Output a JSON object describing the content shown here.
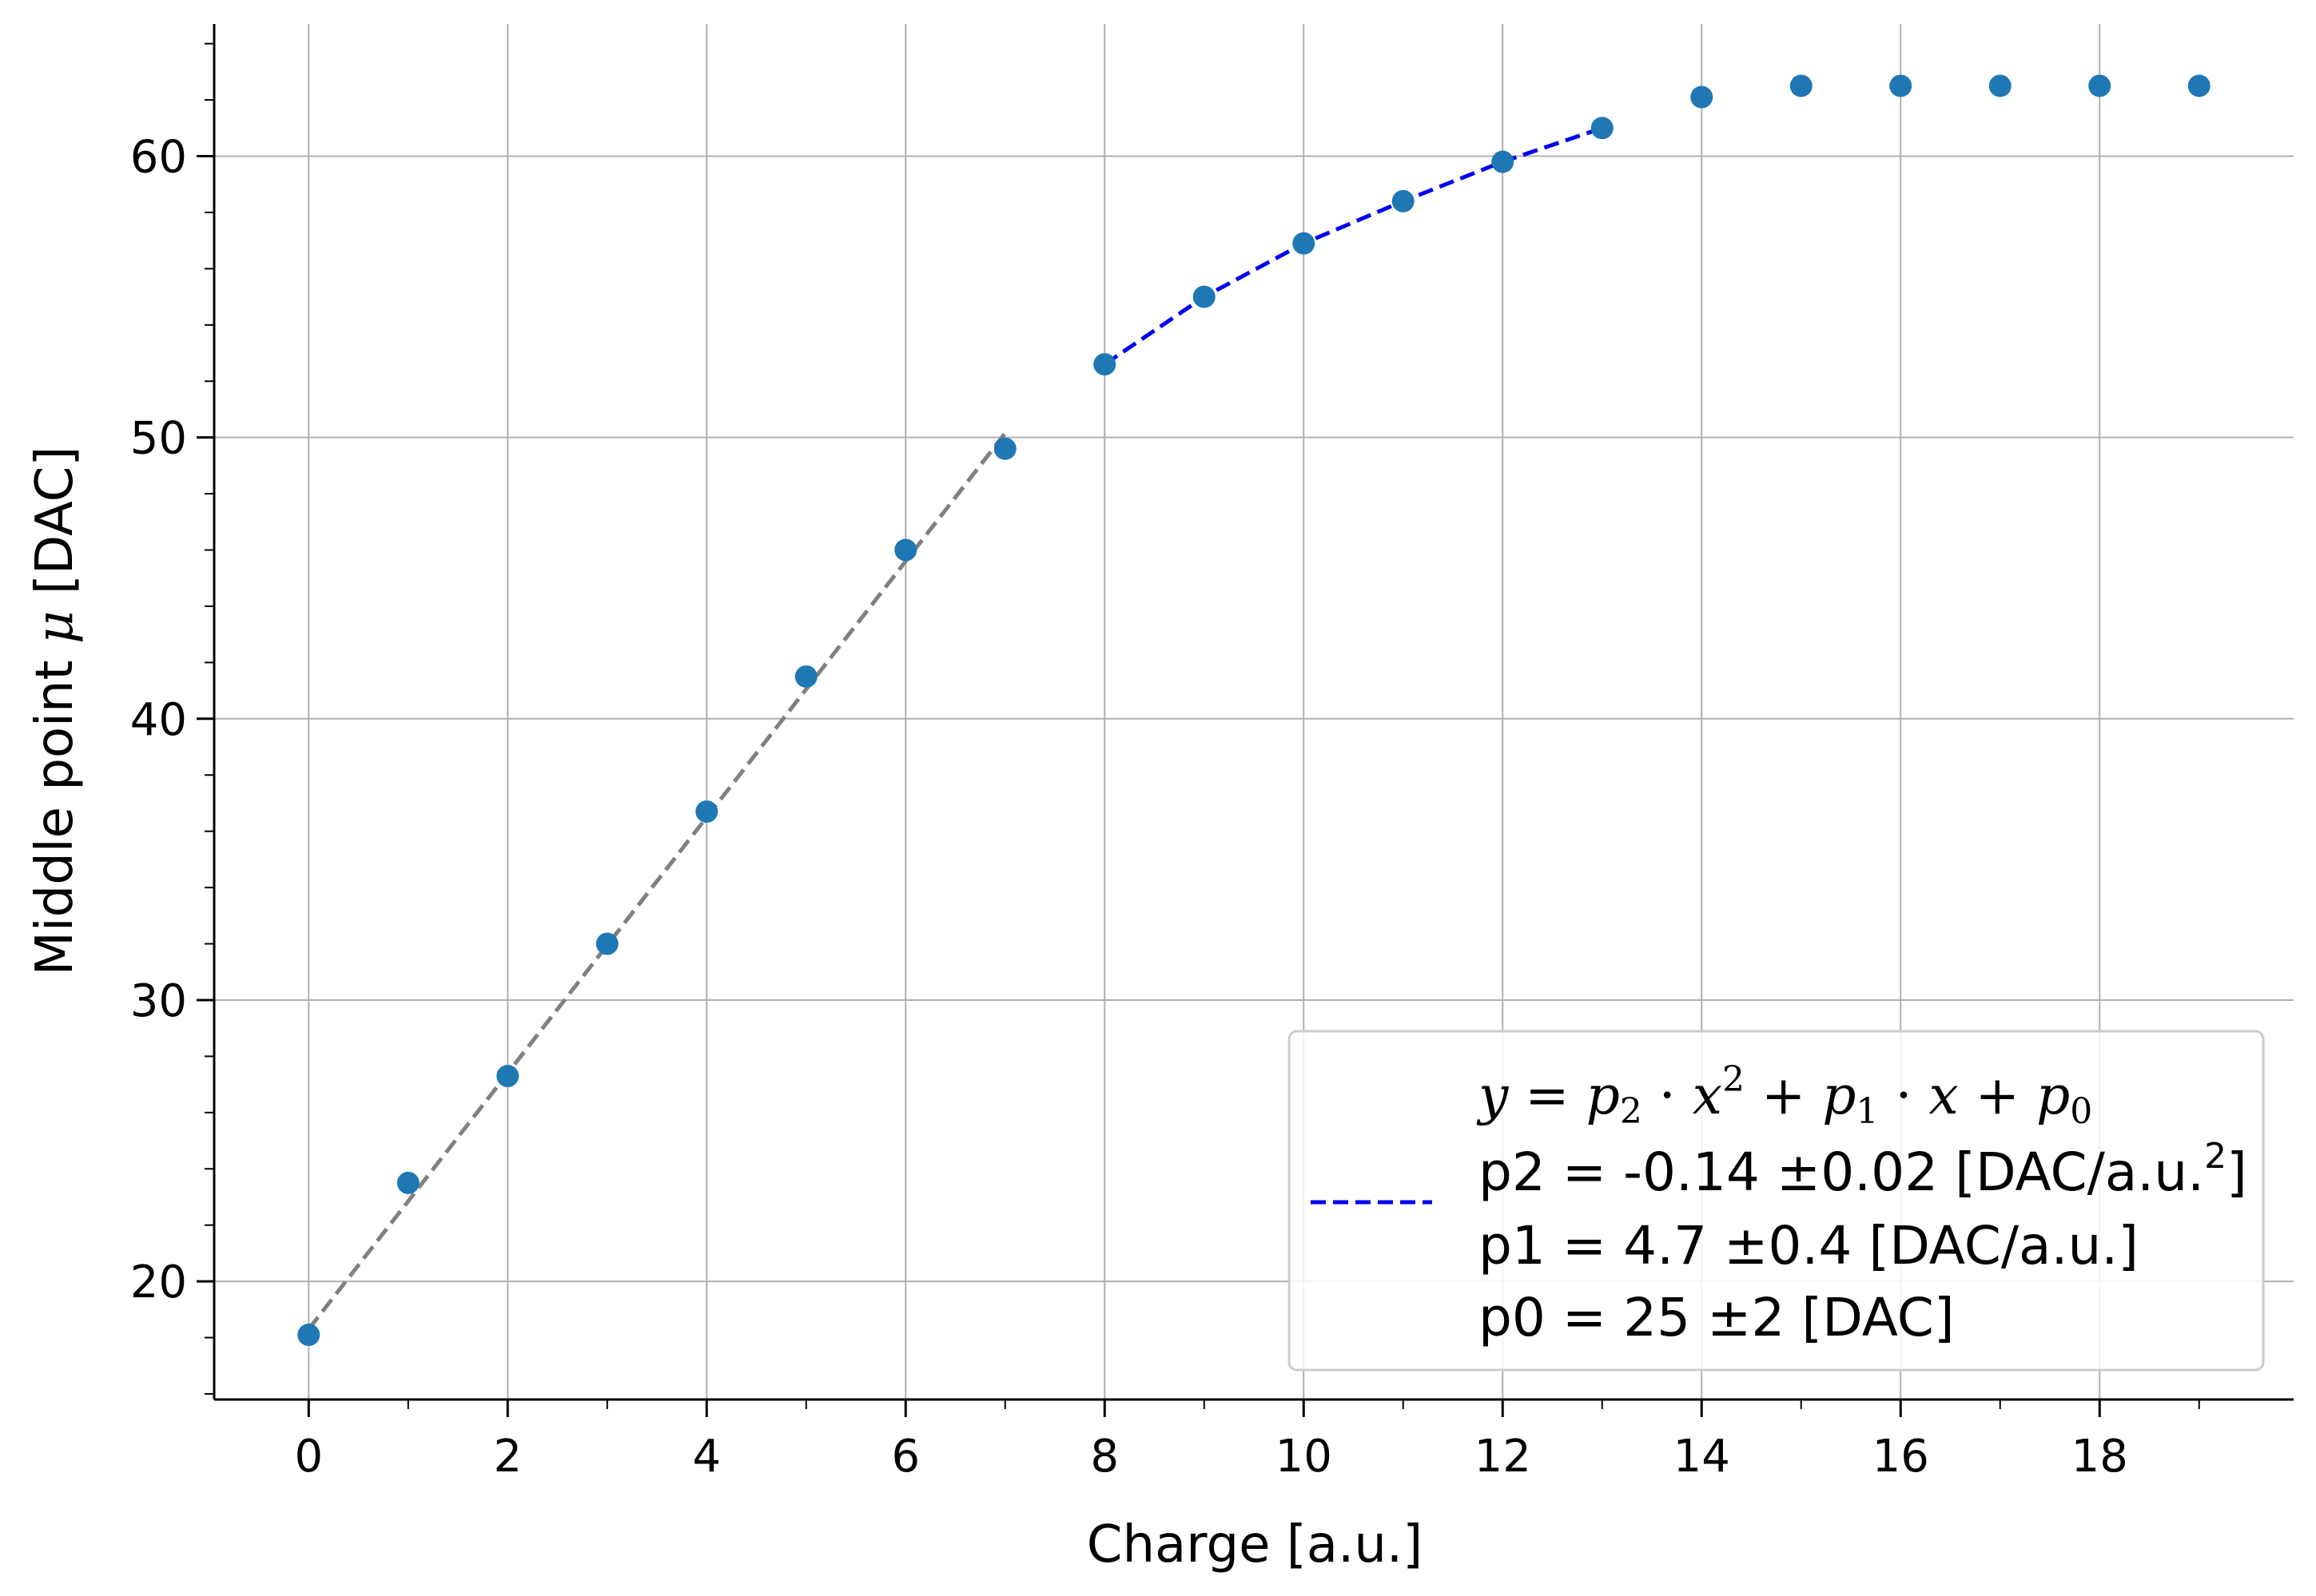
{
  "chart_data": {
    "type": "scatter",
    "xlabel": "Charge [a.u.]",
    "ylabel_prefix": "Middle point ",
    "ylabel_symbol": "μ",
    "ylabel_suffix": " [DAC]",
    "xlim": [
      -0.95,
      19.95
    ],
    "ylim": [
      15.8,
      64.7
    ],
    "x_ticks": [
      0,
      2,
      4,
      6,
      8,
      10,
      12,
      14,
      16,
      18
    ],
    "y_ticks": [
      20,
      30,
      40,
      50,
      60
    ],
    "x_minor_step": 1,
    "y_minor_step": 2,
    "grid": true,
    "series": [
      {
        "kind": "points",
        "color": "#1f77b4",
        "x": [
          0,
          1,
          2,
          3,
          4,
          5,
          6,
          7,
          8,
          9,
          10,
          11,
          12,
          13,
          14,
          15,
          16,
          17,
          18,
          19
        ],
        "y": [
          18.1,
          23.5,
          27.3,
          32.0,
          36.7,
          41.5,
          46.0,
          49.6,
          52.6,
          55.0,
          56.9,
          58.4,
          59.8,
          61.0,
          62.1,
          62.5,
          62.5,
          62.5,
          62.5,
          62.5
        ]
      },
      {
        "kind": "fit-linear",
        "color": "#808080",
        "dash": "dashed",
        "x_range": [
          0,
          7
        ],
        "slope": 4.55,
        "intercept": 18.3
      },
      {
        "kind": "fit-quadratic",
        "color": "#0000ee",
        "dash": "dashed",
        "x_range": [
          8,
          13
        ],
        "values": [
          [
            8,
            52.6
          ],
          [
            9,
            55.0
          ],
          [
            10,
            56.9
          ],
          [
            11,
            58.4
          ],
          [
            12,
            59.8
          ],
          [
            13,
            61.0
          ]
        ]
      }
    ],
    "legend": {
      "placement": "lower-right",
      "formula": {
        "y": "y",
        "eq": " = ",
        "p2": "p",
        "p2_sub": "2",
        "dot1": " · ",
        "x2": "x",
        "x2_sup": "2",
        "plus1": " + ",
        "p1": "p",
        "p1_sub": "1",
        "dot2": " · ",
        "x1": "x",
        "plus2": " + ",
        "p0": "p",
        "p0_sub": "0"
      },
      "line_p2_main": "p2 = -0.14 ±0.02 [DAC/a.u.",
      "line_p2_sup": "2",
      "line_p2_end": "]",
      "line_p1": "p1 = 4.7 ±0.4 [DAC/a.u.]",
      "line_p0": "p0 = 25 ±2 [DAC]",
      "handle_color": "#0000ee"
    }
  }
}
